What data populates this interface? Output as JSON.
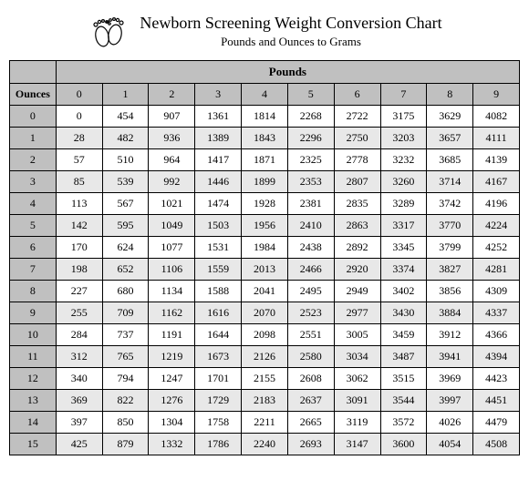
{
  "title": "Newborn Screening Weight Conversion Chart",
  "subtitle": "Pounds and Ounces to Grams",
  "icon_name": "baby-feet-icon",
  "table": {
    "type": "table",
    "col_label": "Pounds",
    "row_label": "Ounces",
    "columns": [
      "0",
      "1",
      "2",
      "3",
      "4",
      "5",
      "6",
      "7",
      "8",
      "9"
    ],
    "row_headers": [
      "0",
      "1",
      "2",
      "3",
      "4",
      "5",
      "6",
      "7",
      "8",
      "9",
      "10",
      "11",
      "12",
      "13",
      "14",
      "15"
    ],
    "rows": [
      [
        "0",
        "454",
        "907",
        "1361",
        "1814",
        "2268",
        "2722",
        "3175",
        "3629",
        "4082"
      ],
      [
        "28",
        "482",
        "936",
        "1389",
        "1843",
        "2296",
        "2750",
        "3203",
        "3657",
        "4111"
      ],
      [
        "57",
        "510",
        "964",
        "1417",
        "1871",
        "2325",
        "2778",
        "3232",
        "3685",
        "4139"
      ],
      [
        "85",
        "539",
        "992",
        "1446",
        "1899",
        "2353",
        "2807",
        "3260",
        "3714",
        "4167"
      ],
      [
        "113",
        "567",
        "1021",
        "1474",
        "1928",
        "2381",
        "2835",
        "3289",
        "3742",
        "4196"
      ],
      [
        "142",
        "595",
        "1049",
        "1503",
        "1956",
        "2410",
        "2863",
        "3317",
        "3770",
        "4224"
      ],
      [
        "170",
        "624",
        "1077",
        "1531",
        "1984",
        "2438",
        "2892",
        "3345",
        "3799",
        "4252"
      ],
      [
        "198",
        "652",
        "1106",
        "1559",
        "2013",
        "2466",
        "2920",
        "3374",
        "3827",
        "4281"
      ],
      [
        "227",
        "680",
        "1134",
        "1588",
        "2041",
        "2495",
        "2949",
        "3402",
        "3856",
        "4309"
      ],
      [
        "255",
        "709",
        "1162",
        "1616",
        "2070",
        "2523",
        "2977",
        "3430",
        "3884",
        "4337"
      ],
      [
        "284",
        "737",
        "1191",
        "1644",
        "2098",
        "2551",
        "3005",
        "3459",
        "3912",
        "4366"
      ],
      [
        "312",
        "765",
        "1219",
        "1673",
        "2126",
        "2580",
        "3034",
        "3487",
        "3941",
        "4394"
      ],
      [
        "340",
        "794",
        "1247",
        "1701",
        "2155",
        "2608",
        "3062",
        "3515",
        "3969",
        "4423"
      ],
      [
        "369",
        "822",
        "1276",
        "1729",
        "2183",
        "2637",
        "3091",
        "3544",
        "3997",
        "4451"
      ],
      [
        "397",
        "850",
        "1304",
        "1758",
        "2211",
        "2665",
        "3119",
        "3572",
        "4026",
        "4479"
      ],
      [
        "425",
        "879",
        "1332",
        "1786",
        "2240",
        "2693",
        "3147",
        "3600",
        "4054",
        "4508"
      ]
    ],
    "header_bg": "#c0c0c0",
    "row_odd_bg": "#ffffff",
    "row_even_bg": "#e8e8e8",
    "border_color": "#000000",
    "title_fontsize": 18,
    "subtitle_fontsize": 13,
    "cell_fontsize": 12
  }
}
